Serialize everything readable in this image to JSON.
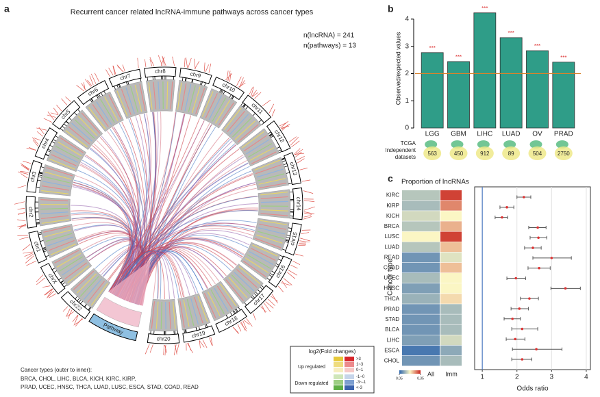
{
  "panel_labels": [
    "a",
    "b",
    "c"
  ],
  "circos": {
    "title": "Recurrent cancer related lncRNA-immune pathways across cancer types",
    "counts": [
      "n(lncRNA) = 241",
      "n(pathways) = 13"
    ],
    "chromosomes": [
      "chr22",
      "chrX",
      "chr1",
      "chr2",
      "chr3",
      "chr4",
      "chr5",
      "chr6",
      "chr7",
      "chr8",
      "chr9",
      "chr10",
      "chr11",
      "chr12",
      "chr13",
      "chr14",
      "chr15",
      "chr16",
      "chr17",
      "chr18",
      "chr19",
      "chr20"
    ],
    "pathway_label": "Pathway",
    "cancer_types_note": [
      "Cancer types (outer to inner):",
      "BRCA, CHOL, LIHC, BLCA, KICH, KIRC, KIRP,",
      "PRAD, UCEC, HNSC, THCA, LUAD, LUSC, ESCA, STAD, COAD, READ"
    ],
    "legend": {
      "title": "log2(Fold changes)",
      "groups": [
        "Up regulated",
        "Down regulated"
      ],
      "levels": [
        ">3",
        "1~3",
        "0~1",
        "-1~0",
        "-3~-1",
        "<-3"
      ],
      "colors": [
        "#d7262b",
        "#ec8a8c",
        "#f6c9c7",
        "#c6d5ea",
        "#7d9fd0",
        "#3b63ad"
      ],
      "alt_colors": [
        "#e6c93a",
        "#efdc7e",
        "#f6edbe",
        "#cfe6b9",
        "#9cce83",
        "#5faf46"
      ]
    }
  },
  "chart_data": [
    {
      "type": "bar",
      "ylabel": "Observed/expected values",
      "categories": [
        "LGG",
        "GBM",
        "LIHC",
        "LUAD",
        "OV",
        "PRAD"
      ],
      "values": [
        2.77,
        2.44,
        4.23,
        3.32,
        2.84,
        2.42
      ],
      "annotations": [
        "***",
        "***",
        "***",
        "***",
        "***",
        "***"
      ],
      "color": "#2f9d88",
      "annotation_color": "#d33",
      "ylim": [
        0,
        4.4
      ],
      "yticks": [
        0,
        1,
        2,
        3,
        4
      ],
      "hline": 2,
      "hline_color": "#d9822b",
      "tcga_label": "TCGA",
      "independent_label": [
        "Independent",
        "datasets"
      ],
      "independent_datasets": [
        563,
        450,
        912,
        89,
        504,
        2750
      ]
    },
    {
      "type": "heatmap",
      "title": "Proportion of lncRNAs",
      "ylabel": "Cancer type",
      "rows": [
        "KIRC",
        "KIRP",
        "KICH",
        "BRCA",
        "LUSC",
        "LUAD",
        "READ",
        "COAD",
        "UCEC",
        "HNSC",
        "THCA",
        "PRAD",
        "STAD",
        "BLCA",
        "LIHC",
        "ESCA",
        "CHOL"
      ],
      "columns": [
        "All",
        "Imm"
      ],
      "values": [
        [
          0.15,
          0.33
        ],
        [
          0.14,
          0.28
        ],
        [
          0.17,
          0.2
        ],
        [
          0.15,
          0.25
        ],
        [
          0.2,
          0.33
        ],
        [
          0.15,
          0.24
        ],
        [
          0.1,
          0.18
        ],
        [
          0.1,
          0.24
        ],
        [
          0.14,
          0.2
        ],
        [
          0.11,
          0.2
        ],
        [
          0.13,
          0.22
        ],
        [
          0.1,
          0.14
        ],
        [
          0.1,
          0.14
        ],
        [
          0.1,
          0.14
        ],
        [
          0.11,
          0.17
        ],
        [
          0.07,
          0.12
        ],
        [
          0.1,
          0.14
        ]
      ],
      "zlim": [
        0.05,
        0.35
      ],
      "zticks": [
        0.05,
        0.35
      ],
      "colorscale": [
        "#2c65ad",
        "#fbf6c4",
        "#c9261f"
      ]
    },
    {
      "type": "forest",
      "xlabel": "Odds ratio",
      "categories": [
        "KIRC",
        "KIRP",
        "KICH",
        "BRCA",
        "LUSC",
        "LUAD",
        "READ",
        "COAD",
        "UCEC",
        "HNSC",
        "THCA",
        "PRAD",
        "STAD",
        "BLCA",
        "LIHC",
        "ESCA",
        "CHOL"
      ],
      "values": [
        2.2,
        1.71,
        1.57,
        2.6,
        2.62,
        2.46,
        3.0,
        2.64,
        1.97,
        3.4,
        2.36,
        2.07,
        1.87,
        2.15,
        1.95,
        2.56,
        2.15
      ],
      "low": [
        2.0,
        1.51,
        1.37,
        2.34,
        2.38,
        2.22,
        2.46,
        2.32,
        1.71,
        2.98,
        2.1,
        1.83,
        1.63,
        1.85,
        1.69,
        1.87,
        1.85
      ],
      "high": [
        2.4,
        1.91,
        1.73,
        2.84,
        2.86,
        2.7,
        3.57,
        2.96,
        2.25,
        3.83,
        2.62,
        2.33,
        2.1,
        2.6,
        2.23,
        3.3,
        2.43
      ],
      "xlim": [
        0.78,
        4.12
      ],
      "xticks": [
        1,
        2,
        3,
        4
      ],
      "grid": true,
      "vline": 1,
      "vline_color": "#4a78c2",
      "color": "#d33"
    }
  ]
}
